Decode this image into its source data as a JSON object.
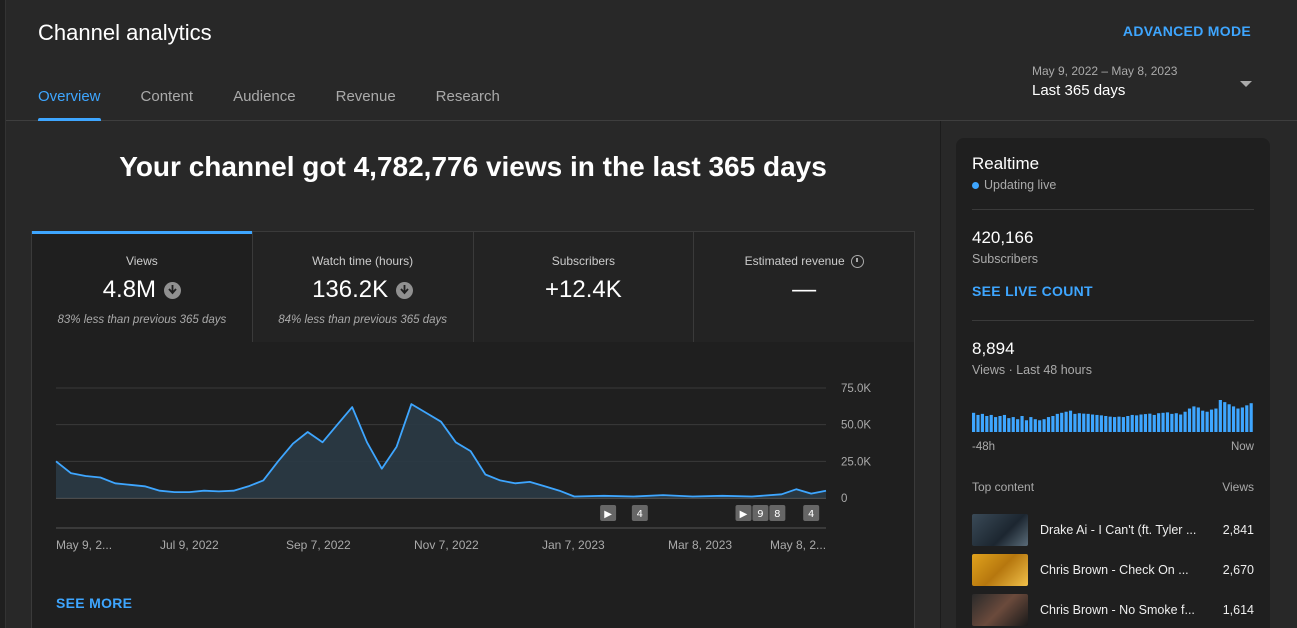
{
  "header": {
    "title": "Channel analytics",
    "advanced_mode": "ADVANCED MODE",
    "tabs": [
      {
        "label": "Overview",
        "active": true
      },
      {
        "label": "Content",
        "active": false
      },
      {
        "label": "Audience",
        "active": false
      },
      {
        "label": "Revenue",
        "active": false
      },
      {
        "label": "Research",
        "active": false
      }
    ],
    "date_range": "May 9, 2022 – May 8, 2023",
    "date_label": "Last 365 days"
  },
  "main": {
    "headline": "Your channel got 4,782,776 views in the last 365 days",
    "metrics": [
      {
        "label": "Views",
        "value": "4.8M",
        "note": "83% less than previous 365 days",
        "trend": "down"
      },
      {
        "label": "Watch time (hours)",
        "value": "136.2K",
        "note": "84% less than previous 365 days",
        "trend": "down"
      },
      {
        "label": "Subscribers",
        "value": "+12.4K",
        "note": ""
      },
      {
        "label": "Estimated revenue",
        "value": "—",
        "note": ""
      }
    ],
    "see_more": "SEE MORE"
  },
  "chart_data": {
    "type": "area",
    "x_tick_labels": [
      "May 9, 2...",
      "Jul 9, 2022",
      "Sep 7, 2022",
      "Nov 7, 2022",
      "Jan 7, 2023",
      "Mar 8, 2023",
      "May 8, 2..."
    ],
    "y_tick_labels": [
      "75.0K",
      "50.0K",
      "25.0K",
      "0"
    ],
    "ylim": [
      0,
      75000
    ],
    "grid": true,
    "color": "#3ea6ff",
    "x_unit": "date",
    "series": [
      {
        "values": [
          {
            "x": "2022-05-09",
            "y": 25000
          },
          {
            "x": "2022-05-16",
            "y": 17000
          },
          {
            "x": "2022-05-23",
            "y": 15000
          },
          {
            "x": "2022-05-30",
            "y": 14000
          },
          {
            "x": "2022-06-06",
            "y": 10000
          },
          {
            "x": "2022-06-13",
            "y": 9000
          },
          {
            "x": "2022-06-20",
            "y": 8000
          },
          {
            "x": "2022-06-27",
            "y": 5000
          },
          {
            "x": "2022-07-04",
            "y": 4000
          },
          {
            "x": "2022-07-11",
            "y": 4000
          },
          {
            "x": "2022-07-18",
            "y": 5000
          },
          {
            "x": "2022-07-25",
            "y": 4500
          },
          {
            "x": "2022-08-01",
            "y": 5000
          },
          {
            "x": "2022-08-08",
            "y": 8000
          },
          {
            "x": "2022-08-15",
            "y": 12000
          },
          {
            "x": "2022-08-22",
            "y": 25000
          },
          {
            "x": "2022-08-29",
            "y": 37000
          },
          {
            "x": "2022-09-05",
            "y": 45000
          },
          {
            "x": "2022-09-12",
            "y": 38000
          },
          {
            "x": "2022-09-19",
            "y": 50000
          },
          {
            "x": "2022-09-26",
            "y": 62000
          },
          {
            "x": "2022-10-03",
            "y": 38000
          },
          {
            "x": "2022-10-10",
            "y": 20000
          },
          {
            "x": "2022-10-17",
            "y": 35000
          },
          {
            "x": "2022-10-24",
            "y": 64000
          },
          {
            "x": "2022-10-31",
            "y": 58000
          },
          {
            "x": "2022-11-07",
            "y": 52000
          },
          {
            "x": "2022-11-14",
            "y": 38000
          },
          {
            "x": "2022-11-21",
            "y": 32000
          },
          {
            "x": "2022-11-28",
            "y": 16000
          },
          {
            "x": "2022-12-05",
            "y": 12000
          },
          {
            "x": "2022-12-12",
            "y": 10000
          },
          {
            "x": "2022-12-19",
            "y": 11000
          },
          {
            "x": "2022-12-26",
            "y": 8000
          },
          {
            "x": "2023-01-02",
            "y": 5000
          },
          {
            "x": "2023-01-09",
            "y": 1000
          },
          {
            "x": "2023-01-23",
            "y": 1500
          },
          {
            "x": "2023-02-06",
            "y": 1000
          },
          {
            "x": "2023-02-20",
            "y": 2000
          },
          {
            "x": "2023-03-06",
            "y": 1000
          },
          {
            "x": "2023-03-20",
            "y": 1500
          },
          {
            "x": "2023-04-03",
            "y": 1000
          },
          {
            "x": "2023-04-17",
            "y": 2500
          },
          {
            "x": "2023-04-24",
            "y": 6000
          },
          {
            "x": "2023-05-01",
            "y": 3000
          },
          {
            "x": "2023-05-08",
            "y": 5000
          }
        ]
      }
    ],
    "markers": [
      {
        "x": "2023-01-25",
        "label": "▶"
      },
      {
        "x": "2023-02-09",
        "label": "4"
      },
      {
        "x": "2023-03-30",
        "label": "▶"
      },
      {
        "x": "2023-04-07",
        "label": "9"
      },
      {
        "x": "2023-04-15",
        "label": "8"
      },
      {
        "x": "2023-05-01",
        "label": "4"
      }
    ]
  },
  "realtime": {
    "title": "Realtime",
    "status": "Updating live",
    "subscribers_value": "420,166",
    "subscribers_label": "Subscribers",
    "see_live_count": "SEE LIVE COUNT",
    "views_value": "8,894",
    "views_label": "Views · Last 48 hours",
    "axis_start": "-48h",
    "axis_end": "Now",
    "hourly_views": [
      90,
      80,
      85,
      75,
      80,
      70,
      75,
      80,
      65,
      70,
      60,
      75,
      55,
      70,
      60,
      55,
      60,
      70,
      75,
      85,
      90,
      95,
      100,
      85,
      88,
      86,
      85,
      82,
      80,
      78,
      75,
      72,
      70,
      72,
      70,
      75,
      80,
      78,
      82,
      84,
      86,
      80,
      88,
      90,
      92,
      85,
      88,
      82,
      95,
      110,
      120,
      115,
      100,
      95,
      105,
      110,
      150,
      140,
      130,
      120,
      110,
      115,
      125,
      135
    ],
    "top_content_header": "Top content",
    "top_content_views_header": "Views",
    "top_content": [
      {
        "title": "Drake Ai - I Can't (ft. Tyler ...",
        "views": "2,841"
      },
      {
        "title": "Chris Brown - Check On ...",
        "views": "2,670"
      },
      {
        "title": "Chris Brown - No Smoke f...",
        "views": "1,614"
      }
    ]
  }
}
